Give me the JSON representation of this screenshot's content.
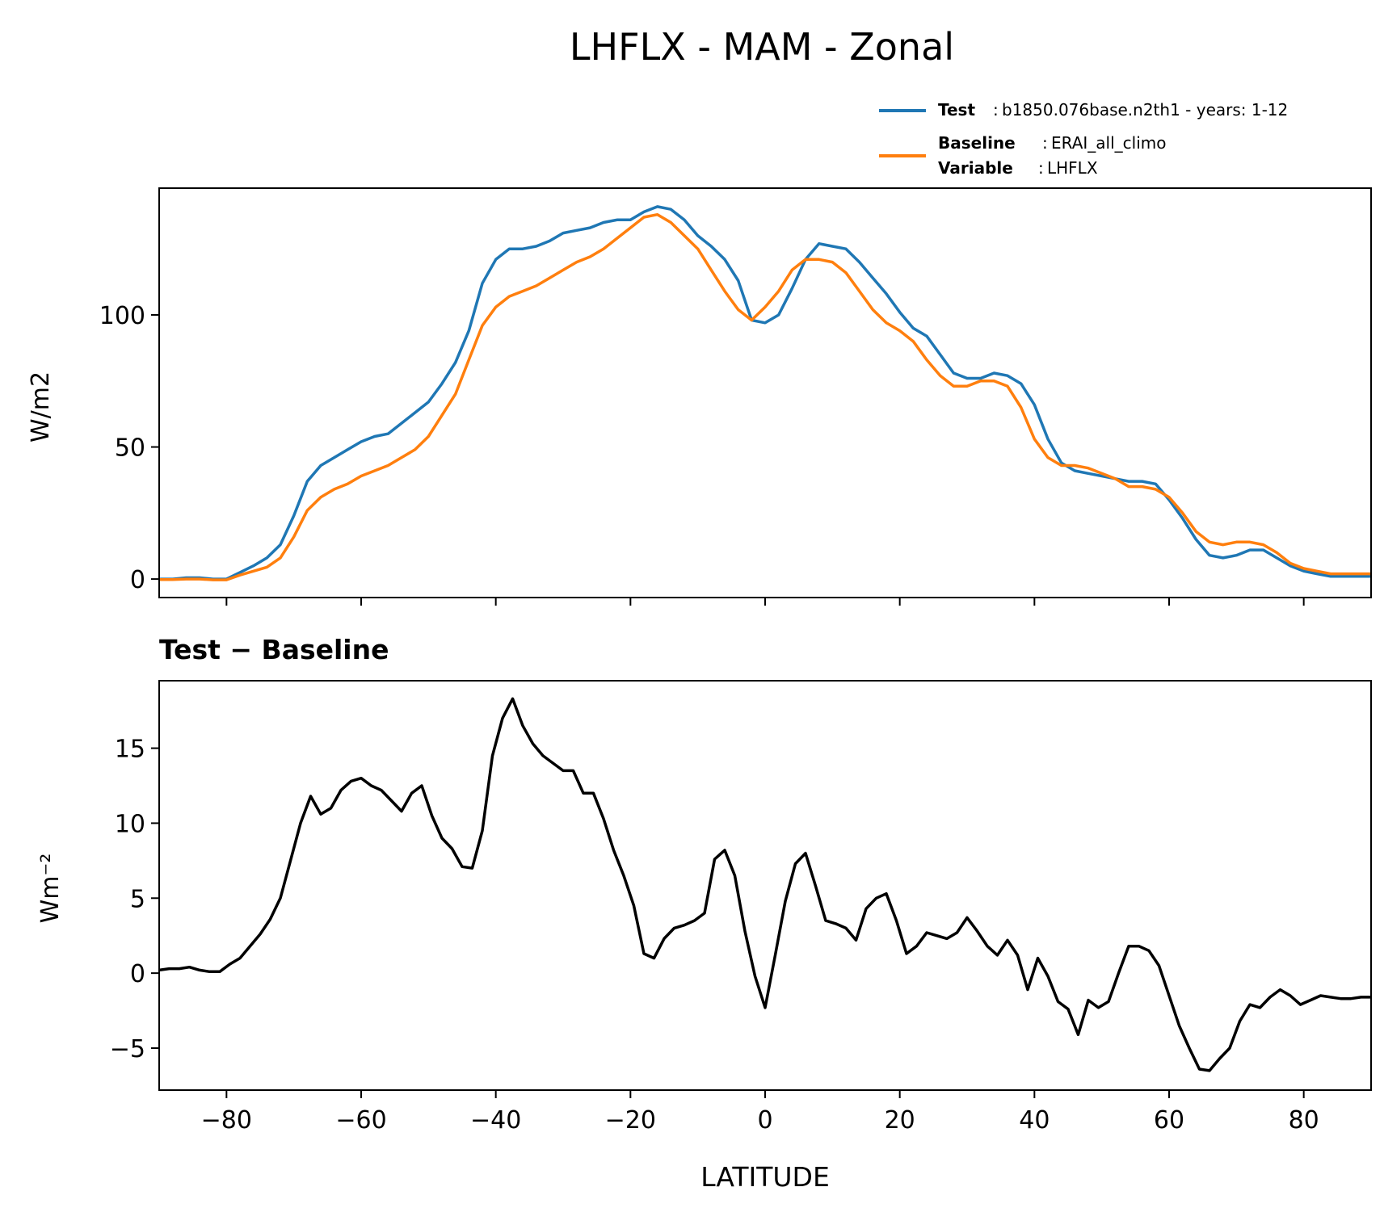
{
  "figure": {
    "title": "LHFLX - MAM - Zonal"
  },
  "legend": {
    "test": {
      "key": "Test",
      "value": "b1850.076base.n2th1 - years: 1-12"
    },
    "baseline": {
      "key": "Baseline",
      "value": "ERAI_all_climo"
    },
    "variable": {
      "key": "Variable",
      "value": "LHFLX"
    }
  },
  "colors": {
    "test": "#1f77b4",
    "baseline": "#ff7f0e",
    "diff": "#000000",
    "axes": "#000000"
  },
  "chart_data": [
    {
      "type": "line",
      "title": "",
      "xlabel": "",
      "ylabel": "W/m2",
      "xlim": [
        -90,
        90
      ],
      "ylim": [
        -7,
        148
      ],
      "yticks": [
        0,
        50,
        100
      ],
      "grid": false,
      "legend_position": "above-right",
      "x": [
        -90,
        -88,
        -86,
        -84,
        -82,
        -80,
        -78,
        -76,
        -74,
        -72,
        -70,
        -68,
        -66,
        -64,
        -62,
        -60,
        -58,
        -56,
        -54,
        -52,
        -50,
        -48,
        -46,
        -44,
        -42,
        -40,
        -38,
        -36,
        -34,
        -32,
        -30,
        -28,
        -26,
        -24,
        -22,
        -20,
        -18,
        -16,
        -14,
        -12,
        -10,
        -8,
        -6,
        -4,
        -2,
        0,
        2,
        4,
        6,
        8,
        10,
        12,
        14,
        16,
        18,
        20,
        22,
        24,
        26,
        28,
        30,
        32,
        34,
        36,
        38,
        40,
        42,
        44,
        46,
        48,
        50,
        52,
        54,
        56,
        58,
        60,
        62,
        64,
        66,
        68,
        70,
        72,
        74,
        76,
        78,
        80,
        82,
        84,
        86,
        88,
        90
      ],
      "series": [
        {
          "name": "Test",
          "values": [
            0,
            0,
            0.5,
            0.5,
            0,
            0,
            2.5,
            5,
            8,
            13,
            24,
            37,
            43,
            46,
            49,
            52,
            54,
            55,
            59,
            63,
            67,
            74,
            82,
            94,
            112,
            121,
            125,
            125,
            126,
            128,
            131,
            132,
            133,
            135,
            136,
            136,
            139,
            141,
            140,
            136,
            130,
            126,
            121,
            113,
            98,
            97,
            100,
            110,
            121,
            127,
            126,
            125,
            120,
            114,
            108,
            101,
            95,
            92,
            85,
            78,
            76,
            76,
            78,
            77,
            74,
            66,
            53,
            44,
            41,
            40,
            39,
            38,
            37,
            37,
            36,
            30,
            23,
            15,
            9,
            8,
            9,
            11,
            11,
            8,
            5,
            3,
            2,
            1,
            1,
            1,
            1
          ]
        },
        {
          "name": "Baseline",
          "values": [
            -0.2,
            -0.2,
            0,
            0,
            -0.3,
            -0.3,
            1.5,
            3,
            4.5,
            8,
            16,
            26,
            31,
            34,
            36,
            39,
            41,
            43,
            46,
            49,
            54,
            62,
            70,
            83,
            96,
            103,
            107,
            109,
            111,
            114,
            117,
            120,
            122,
            125,
            129,
            133,
            137,
            138,
            135,
            130,
            125,
            117,
            109,
            102,
            98,
            103,
            109,
            117,
            121,
            121,
            120,
            116,
            109,
            102,
            97,
            94,
            90,
            83,
            77,
            73,
            73,
            75,
            75,
            73,
            65,
            53,
            46,
            43,
            43,
            42,
            40,
            38,
            35,
            35,
            34,
            31,
            25,
            18,
            14,
            13,
            14,
            14,
            13,
            10,
            6,
            4,
            3,
            2,
            2,
            2,
            2
          ]
        }
      ]
    },
    {
      "type": "line",
      "title": "Test − Baseline",
      "xlabel": "LATITUDE",
      "ylabel": "Wm⁻²",
      "xlim": [
        -90,
        90
      ],
      "ylim": [
        -7.8,
        19.5
      ],
      "yticks": [
        -5,
        0,
        5,
        10,
        15
      ],
      "xticks": [
        -80,
        -60,
        -40,
        -20,
        0,
        20,
        40,
        60,
        80
      ],
      "xtick_labels": [
        "−80",
        "−60",
        "−40",
        "−20",
        "0",
        "20",
        "40",
        "60",
        "80"
      ],
      "ytick_labels": [
        "−5",
        "0",
        "5",
        "10",
        "15"
      ],
      "grid": false,
      "x": [
        -90,
        -88.5,
        -87,
        -85.5,
        -84,
        -82.5,
        -81,
        -79.5,
        -78,
        -76.5,
        -75,
        -73.5,
        -72,
        -70.5,
        -69,
        -67.5,
        -66,
        -64.5,
        -63,
        -61.5,
        -60,
        -58.5,
        -57,
        -55.5,
        -54,
        -52.5,
        -51,
        -49.5,
        -48,
        -46.5,
        -45,
        -43.5,
        -42,
        -40.5,
        -39,
        -37.5,
        -36,
        -34.5,
        -33,
        -31.5,
        -30,
        -28.5,
        -27,
        -25.5,
        -24,
        -22.5,
        -21,
        -19.5,
        -18,
        -16.5,
        -15,
        -13.5,
        -12,
        -10.5,
        -9,
        -7.5,
        -6,
        -4.5,
        -3,
        -1.5,
        0,
        1.5,
        3,
        4.5,
        6,
        7.5,
        9,
        10.5,
        12,
        13.5,
        15,
        16.5,
        18,
        19.5,
        21,
        22.5,
        24,
        25.5,
        27,
        28.5,
        30,
        31.5,
        33,
        34.5,
        36,
        37.5,
        39,
        40.5,
        42,
        43.5,
        45,
        46.5,
        48,
        49.5,
        51,
        52.5,
        54,
        55.5,
        57,
        58.5,
        60,
        61.5,
        63,
        64.5,
        66,
        67.5,
        69,
        70.5,
        72,
        73.5,
        75,
        76.5,
        78,
        79.5,
        81,
        82.5,
        84,
        85.5,
        87,
        88.5,
        90
      ],
      "series": [
        {
          "name": "Test − Baseline",
          "values": [
            0.2,
            0.3,
            0.3,
            0.4,
            0.2,
            0.1,
            0.1,
            0.6,
            1.0,
            1.8,
            2.6,
            3.6,
            5.0,
            7.5,
            10.0,
            11.8,
            10.6,
            11.0,
            12.2,
            12.8,
            13.0,
            12.5,
            12.2,
            11.5,
            10.8,
            12.0,
            12.5,
            10.5,
            9.0,
            8.3,
            7.1,
            7.0,
            9.5,
            14.5,
            17.0,
            18.3,
            16.5,
            15.3,
            14.5,
            14.0,
            13.5,
            13.5,
            12.0,
            12.0,
            10.3,
            8.2,
            6.5,
            4.5,
            1.3,
            1.0,
            2.3,
            3.0,
            3.2,
            3.5,
            4.0,
            7.6,
            8.2,
            6.5,
            2.8,
            -0.2,
            -2.3,
            1.2,
            4.8,
            7.3,
            8.0,
            5.8,
            3.5,
            3.3,
            3.0,
            2.2,
            4.3,
            5.0,
            5.3,
            3.5,
            1.3,
            1.8,
            2.7,
            2.5,
            2.3,
            2.7,
            3.7,
            2.8,
            1.8,
            1.2,
            2.2,
            1.2,
            -1.1,
            1.0,
            -0.2,
            -1.9,
            -2.4,
            -4.1,
            -1.8,
            -2.3,
            -1.9,
            0,
            1.8,
            1.8,
            1.5,
            0.5,
            -1.5,
            -3.5,
            -5.0,
            -6.4,
            -6.5,
            -5.7,
            -5.0,
            -3.2,
            -2.1,
            -2.3,
            -1.6,
            -1.1,
            -1.5,
            -2.1,
            -1.8,
            -1.5,
            -1.6,
            -1.7,
            -1.7,
            -1.6,
            -1.6
          ]
        }
      ]
    }
  ]
}
